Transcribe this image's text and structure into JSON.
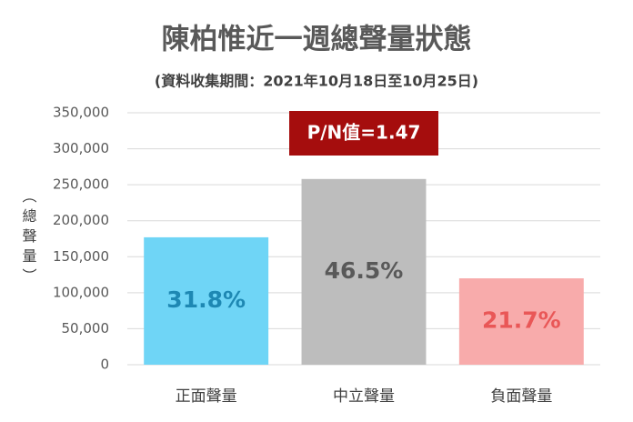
{
  "chart_data": {
    "type": "bar",
    "title": "陳柏惟近一週總聲量狀態",
    "subtitle": "(資料收集期間：2021年10月18日至10月25日)",
    "ylabel": "（總聲量）",
    "categories": [
      "正面聲量",
      "中立聲量",
      "負面聲量"
    ],
    "values": [
      177000,
      258000,
      120000
    ],
    "colors": [
      "#6fd5f6",
      "#bdbdbd",
      "#f8abab"
    ],
    "percentages": [
      {
        "value": 31.8,
        "label": "31.8%"
      },
      {
        "value": 46.5,
        "label": "46.5%"
      },
      {
        "value": 21.7,
        "label": "21.7%"
      }
    ],
    "percentage_colors": [
      "#1e88b3",
      "#595959",
      "#e95757"
    ],
    "annotation": "P/N值=1.47",
    "annotation_color": "#a50d0d",
    "ylim": [
      0,
      350000
    ],
    "yticks": [
      0,
      {
        "value": 50000,
        "label": "50,000"
      },
      {
        "value": 100000,
        "label": "100,000"
      },
      {
        "value": 150000,
        "label": "150,000"
      },
      {
        "value": 200000,
        "label": "200,000"
      },
      {
        "value": 250000,
        "label": "250,000"
      },
      {
        "value": 300000,
        "label": "300,000"
      },
      {
        "value": 350000,
        "label": "350,000"
      }
    ],
    "grid": true
  }
}
